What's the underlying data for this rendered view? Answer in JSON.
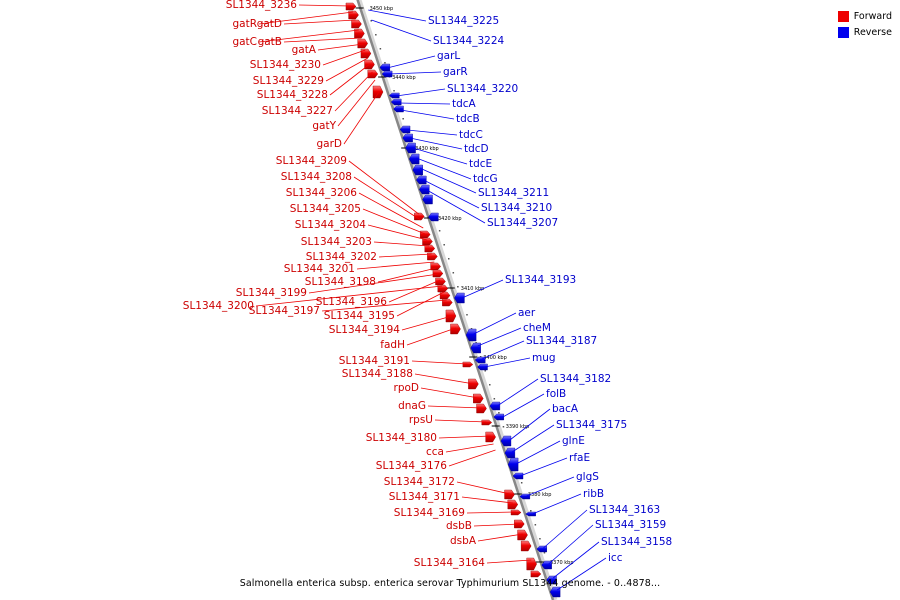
{
  "legend": {
    "forward": {
      "label": "Forward",
      "color": "#ee0000"
    },
    "reverse": {
      "label": "Reverse",
      "color": "#0000ee"
    }
  },
  "caption": "Salmonella enterica subsp. enterica serovar Typhimurium SL1344 genome. - 0..4878...",
  "axis_ticks": [
    "3450 kbp",
    "3440 kbp",
    "3430 kbp",
    "3420 kbp",
    "3410 kbp",
    "3400 kbp",
    "3390 kbp",
    "3380 kbp",
    "3370 kbp"
  ],
  "forward_genes": [
    "SL1344_3236",
    "gatR",
    "gatD",
    "gatC",
    "gatB",
    "gatA",
    "SL1344_3230",
    "SL1344_3229",
    "SL1344_3228",
    "SL1344_3227",
    "gatY",
    "garD",
    "SL1344_3209",
    "SL1344_3208",
    "SL1344_3206",
    "SL1344_3205",
    "SL1344_3204",
    "SL1344_3203",
    "SL1344_3202",
    "SL1344_3201",
    "SL1344_3198",
    "SL1344_3199",
    "SL1344_3196",
    "SL1344_3200",
    "SL1344_3195",
    "SL1344_3197",
    "SL1344_3194",
    "fadH",
    "SL1344_3191",
    "SL1344_3188",
    "rpoD",
    "dnaG",
    "rpsU",
    "SL1344_3180",
    "cca",
    "SL1344_3176",
    "SL1344_3172",
    "SL1344_3171",
    "SL1344_3169",
    "dsbB",
    "dsbA",
    "SL1344_3164"
  ],
  "reverse_genes": [
    "SL1344_3225",
    "SL1344_3224",
    "garL",
    "garR",
    "SL1344_3220",
    "tdcA",
    "tdcB",
    "tdcC",
    "tdcD",
    "tdcE",
    "tdcG",
    "SL1344_3211",
    "SL1344_3210",
    "SL1344_3207",
    "SL1344_3193",
    "aer",
    "cheM",
    "SL1344_3187",
    "mug",
    "SL1344_3182",
    "folB",
    "bacA",
    "SL1344_3175",
    "glnE",
    "rfaE",
    "glgS",
    "ribB",
    "SL1344_3163",
    "SL1344_3159",
    "SL1344_3158",
    "icc"
  ]
}
